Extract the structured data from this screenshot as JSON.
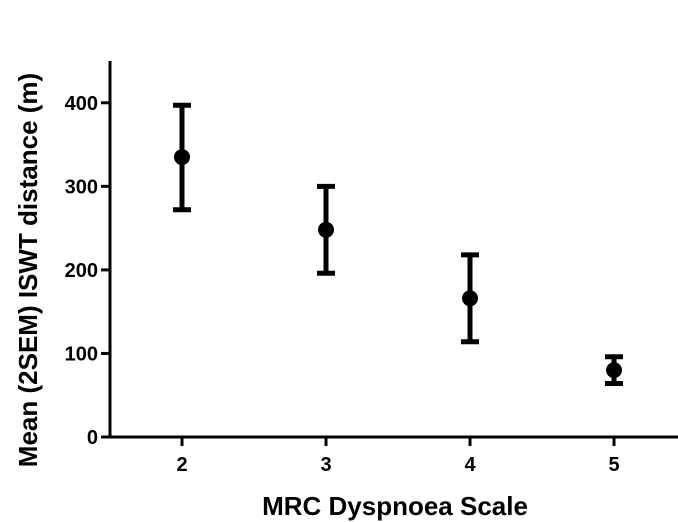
{
  "chart_data": {
    "type": "scatter",
    "title": "",
    "xlabel": "MRC Dyspnoea Scale",
    "ylabel": "Mean (2SEM) ISWT distance (m)",
    "x": [
      2,
      3,
      4,
      5
    ],
    "x_tick_labels": [
      "2",
      "3",
      "4",
      "5"
    ],
    "series": [
      {
        "values": [
          335,
          248,
          166,
          80
        ],
        "error_upper": [
          397,
          300,
          218,
          96
        ],
        "error_lower": [
          272,
          196,
          114,
          64
        ]
      }
    ],
    "ylim": [
      0,
      450
    ],
    "y_ticks": [
      0,
      100,
      200,
      300,
      400
    ],
    "y_tick_labels": [
      "0",
      "100",
      "200",
      "300",
      "400"
    ],
    "grid": false,
    "legend": "none"
  }
}
